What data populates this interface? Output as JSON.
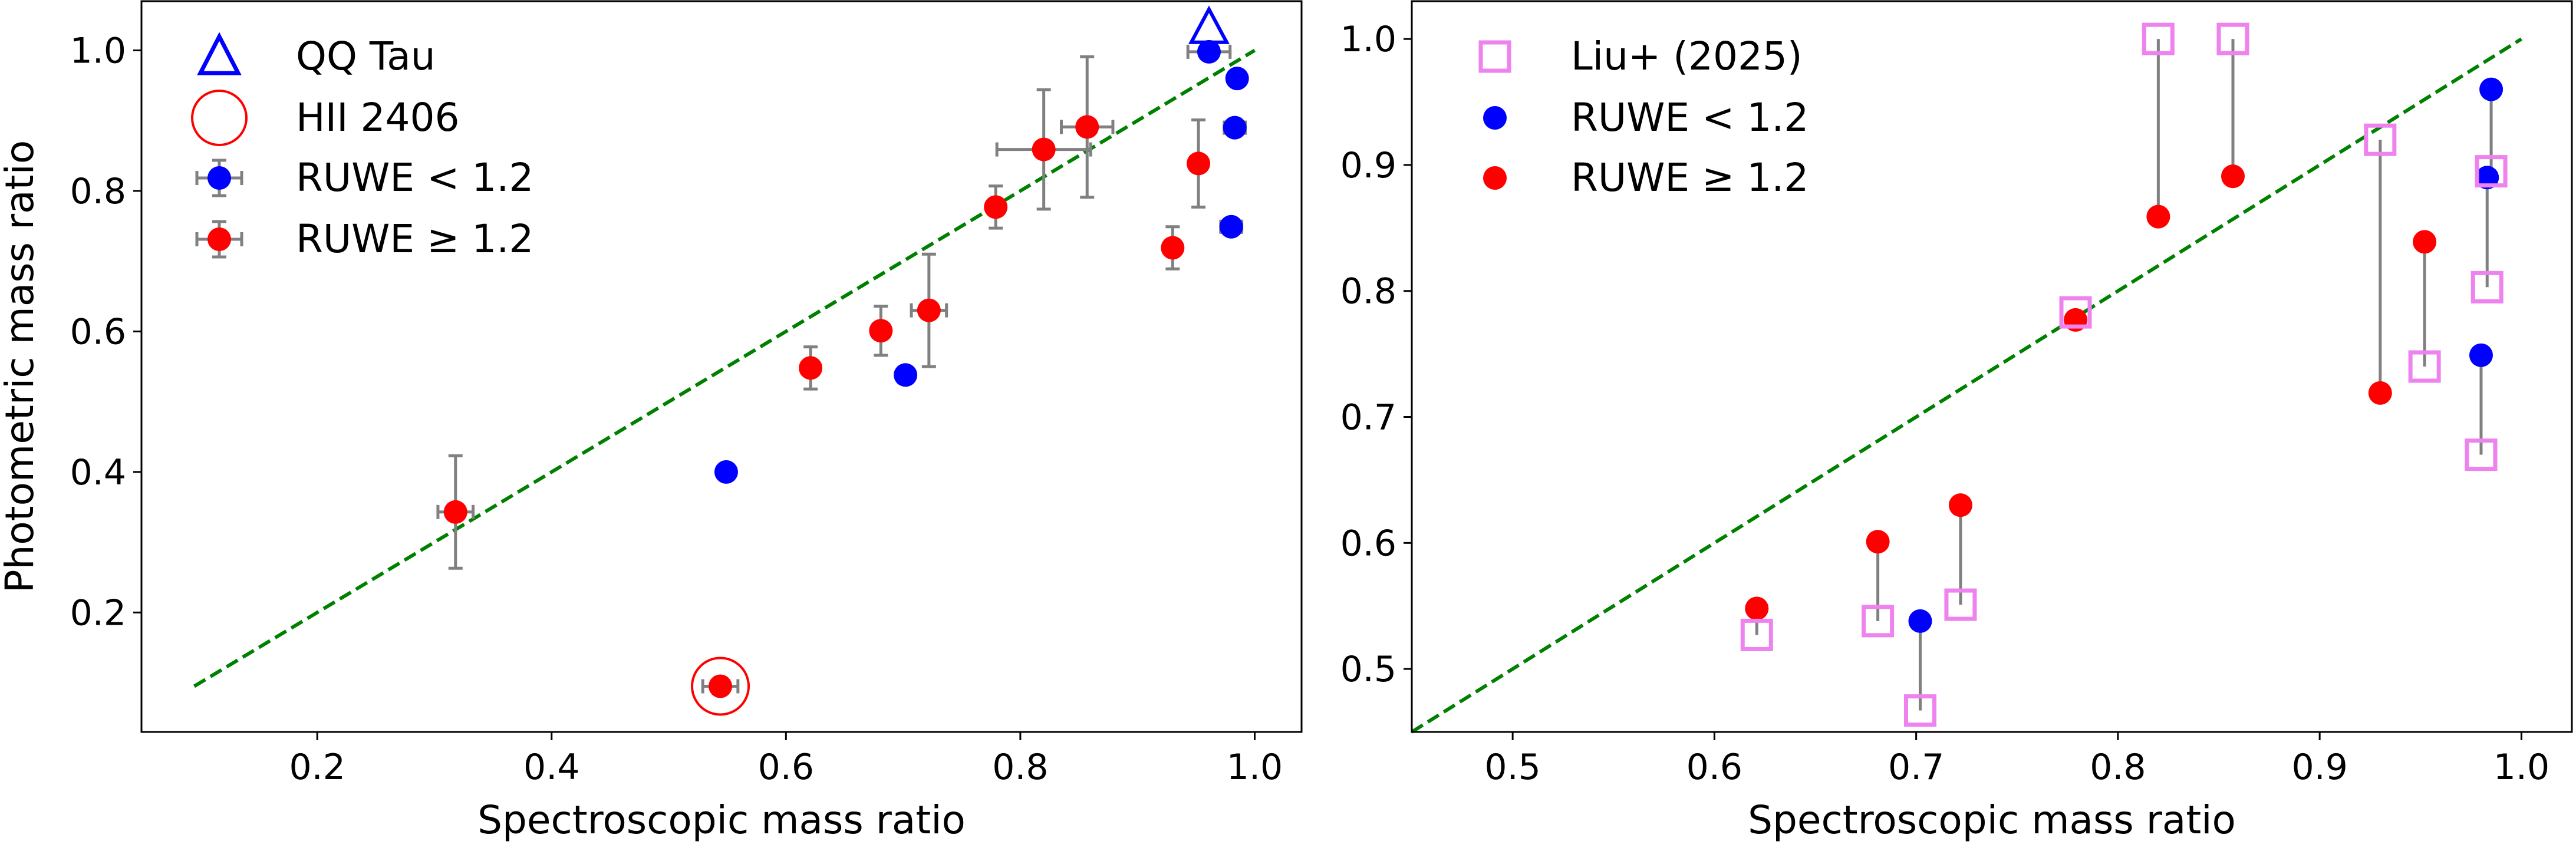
{
  "chart_data": [
    {
      "type": "scatter",
      "xlabel": "Spectroscopic mass ratio",
      "ylabel": "Photometric mass ratio",
      "xlim": [
        0.05,
        1.04
      ],
      "ylim": [
        0.03,
        1.07
      ],
      "xticks": [
        "0.2",
        "0.4",
        "0.6",
        "0.8",
        "1.0"
      ],
      "yticks": [
        "0.2",
        "0.4",
        "0.6",
        "0.8",
        "1.0"
      ],
      "one_to_one_line": {
        "from": [
          0.095,
          0.095
        ],
        "to": [
          1.0,
          1.0
        ],
        "color": "#008000",
        "style": "dashed"
      },
      "legend": {
        "position": "top-left",
        "entries": [
          {
            "label": "QQ Tau",
            "marker": "open-triangle",
            "color": "#0000ff"
          },
          {
            "label": "HII 2406",
            "marker": "open-circle",
            "color": "#ff0000"
          },
          {
            "label": "RUWE < 1.2",
            "marker": "point-with-errorbar",
            "color": "#0000ff"
          },
          {
            "label": "RUWE ≥ 1.2",
            "marker": "point-with-errorbar",
            "color": "#ff0000"
          }
        ]
      },
      "series": [
        {
          "name": "RUWE < 1.2",
          "color": "#0000ff",
          "points": [
            {
              "x": 0.549,
              "y": 0.4
            },
            {
              "x": 0.702,
              "y": 0.538
            },
            {
              "x": 0.961,
              "y": 0.998,
              "xerr": 0.018
            },
            {
              "x": 0.985,
              "y": 0.96
            },
            {
              "x": 0.983,
              "y": 0.89,
              "xerr": 0.009
            },
            {
              "x": 0.98,
              "y": 0.749,
              "xerr": 0.009
            }
          ]
        },
        {
          "name": "RUWE ≥ 1.2",
          "color": "#ff0000",
          "points": [
            {
              "x": 0.318,
              "y": 0.343,
              "xerr": 0.015,
              "yerr": 0.08
            },
            {
              "x": 0.544,
              "y": 0.095,
              "xerr": 0.015
            },
            {
              "x": 0.621,
              "y": 0.548,
              "yerr": 0.03
            },
            {
              "x": 0.681,
              "y": 0.601,
              "yerr": 0.035
            },
            {
              "x": 0.722,
              "y": 0.63,
              "xerr": 0.015,
              "yerr": 0.08
            },
            {
              "x": 0.779,
              "y": 0.777,
              "yerr": 0.03
            },
            {
              "x": 0.82,
              "y": 0.859,
              "xerr": 0.04,
              "yerr": 0.085
            },
            {
              "x": 0.857,
              "y": 0.891,
              "xerr": 0.022,
              "yerr": 0.1
            },
            {
              "x": 0.93,
              "y": 0.719,
              "yerr": 0.03
            },
            {
              "x": 0.952,
              "y": 0.839,
              "yerr": 0.062
            }
          ]
        }
      ],
      "highlights": [
        {
          "name": "QQ Tau",
          "marker": "open-triangle",
          "color": "#0000ff",
          "x": 0.961,
          "y": 1.03
        },
        {
          "name": "HII 2406",
          "marker": "open-circle",
          "color": "#ff0000",
          "x": 0.544,
          "y": 0.095
        }
      ]
    },
    {
      "type": "scatter",
      "xlabel": "Spectroscopic mass ratio",
      "ylabel": "",
      "xlim": [
        0.45,
        1.025
      ],
      "ylim": [
        0.45,
        1.03
      ],
      "xticks": [
        "0.5",
        "0.6",
        "0.7",
        "0.8",
        "0.9",
        "1.0"
      ],
      "yticks": [
        "0.5",
        "0.6",
        "0.7",
        "0.8",
        "0.9",
        "1.0"
      ],
      "one_to_one_line": {
        "from": [
          0.45,
          0.45
        ],
        "to": [
          1.0,
          1.0
        ],
        "color": "#008000",
        "style": "dashed"
      },
      "legend": {
        "position": "top-left",
        "entries": [
          {
            "label": "Liu+ (2025)",
            "marker": "open-square",
            "color": "#ee82ee"
          },
          {
            "label": "RUWE < 1.2",
            "marker": "circle",
            "color": "#0000ff"
          },
          {
            "label": "RUWE ≥ 1.2",
            "marker": "circle",
            "color": "#ff0000"
          }
        ]
      },
      "series": [
        {
          "name": "RUWE < 1.2",
          "color": "#0000ff",
          "points": [
            {
              "x": 0.702,
              "y": 0.538
            },
            {
              "x": 0.985,
              "y": 0.96
            },
            {
              "x": 0.983,
              "y": 0.89
            },
            {
              "x": 0.98,
              "y": 0.749
            }
          ]
        },
        {
          "name": "RUWE ≥ 1.2",
          "color": "#ff0000",
          "points": [
            {
              "x": 0.621,
              "y": 0.548
            },
            {
              "x": 0.681,
              "y": 0.601
            },
            {
              "x": 0.722,
              "y": 0.63
            },
            {
              "x": 0.779,
              "y": 0.777
            },
            {
              "x": 0.82,
              "y": 0.859
            },
            {
              "x": 0.857,
              "y": 0.891
            },
            {
              "x": 0.93,
              "y": 0.719
            },
            {
              "x": 0.952,
              "y": 0.839
            }
          ]
        },
        {
          "name": "Liu+ (2025)",
          "color": "#ee82ee",
          "points": [
            {
              "x": 0.621,
              "y": 0.527
            },
            {
              "x": 0.681,
              "y": 0.538
            },
            {
              "x": 0.702,
              "y": 0.467
            },
            {
              "x": 0.722,
              "y": 0.551
            },
            {
              "x": 0.779,
              "y": 0.783
            },
            {
              "x": 0.82,
              "y": 1.0
            },
            {
              "x": 0.857,
              "y": 1.0
            },
            {
              "x": 0.93,
              "y": 0.92
            },
            {
              "x": 0.952,
              "y": 0.74
            },
            {
              "x": 0.98,
              "y": 0.67
            },
            {
              "x": 0.983,
              "y": 0.803
            },
            {
              "x": 0.985,
              "y": 0.895
            }
          ]
        }
      ],
      "connectors": [
        {
          "x": 0.621,
          "y1": 0.548,
          "y2": 0.527
        },
        {
          "x": 0.681,
          "y1": 0.601,
          "y2": 0.538
        },
        {
          "x": 0.702,
          "y1": 0.538,
          "y2": 0.467
        },
        {
          "x": 0.722,
          "y1": 0.63,
          "y2": 0.551
        },
        {
          "x": 0.779,
          "y1": 0.777,
          "y2": 0.783
        },
        {
          "x": 0.82,
          "y1": 0.859,
          "y2": 1.0
        },
        {
          "x": 0.857,
          "y1": 0.891,
          "y2": 1.0
        },
        {
          "x": 0.93,
          "y1": 0.719,
          "y2": 0.92
        },
        {
          "x": 0.952,
          "y1": 0.839,
          "y2": 0.74
        },
        {
          "x": 0.98,
          "y1": 0.749,
          "y2": 0.67
        },
        {
          "x": 0.983,
          "y1": 0.89,
          "y2": 0.803
        },
        {
          "x": 0.985,
          "y1": 0.96,
          "y2": 0.895
        }
      ]
    }
  ]
}
